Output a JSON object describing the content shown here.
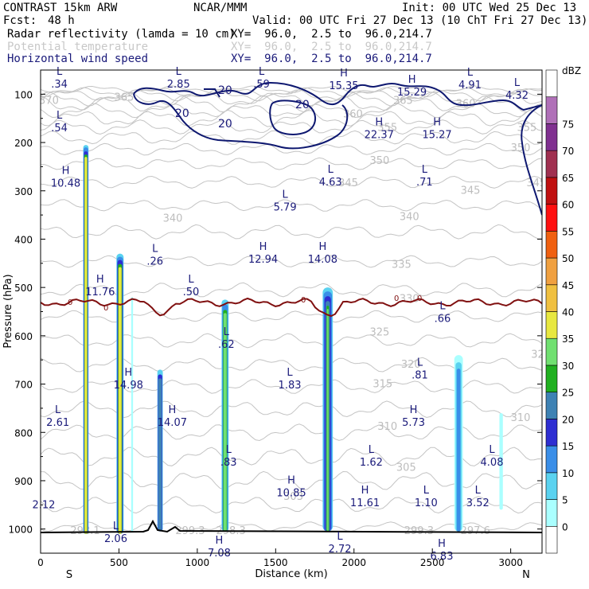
{
  "header": {
    "model": "CONTRAST 15km ARW",
    "center": "NCAR/MMM",
    "init": "Init: 00 UTC Wed 25 Dec 13",
    "fcst_label": "Fcst:",
    "fcst_value": "48 h",
    "valid": "Valid: 00 UTC Fri 27 Dec 13 (10 ChT Fri 27 Dec 13)",
    "fields": [
      {
        "name": "Radar reflectivity (lamda = 10 cm)",
        "xy": "XY=  96.0,  2.5 to  96.0,214.7",
        "color": "#000000"
      },
      {
        "name": "Potential temperature",
        "xy": "XY=  96.0,  2.5 to  96.0,214.7",
        "color": "#c8c8c8"
      },
      {
        "name": "Horizontal wind speed",
        "xy": "XY=  96.0,  2.5 to  96.0,214.7",
        "color": "#1a1a7a"
      }
    ]
  },
  "chart_data": {
    "type": "cross-section",
    "title": "CONTRAST 15km ARW cross-section",
    "xlabel": "Distance (km)",
    "ylabel": "Pressure (hPa)",
    "xlim": [
      0,
      3200
    ],
    "ylim": [
      1050,
      50
    ],
    "x_ticks": [
      0,
      500,
      1000,
      1500,
      2000,
      2500,
      3000
    ],
    "y_ticks": [
      100,
      200,
      300,
      400,
      500,
      600,
      700,
      800,
      900,
      1000
    ],
    "endpoints": {
      "left": "S",
      "right": "N"
    },
    "colorbar": {
      "unit": "dBZ",
      "levels": [
        0,
        5,
        10,
        15,
        20,
        25,
        30,
        35,
        40,
        45,
        50,
        55,
        60,
        65,
        70,
        75
      ],
      "colors": [
        "#ffffff",
        "#aaffff",
        "#5ad2f0",
        "#3a8ee8",
        "#2e2ed2",
        "#3e82b4",
        "#20b020",
        "#70e070",
        "#e8e840",
        "#f0c040",
        "#f0a040",
        "#f06010",
        "#ff1010",
        "#c01010",
        "#a03050",
        "#803090",
        "#b070b8",
        "#ffffff"
      ]
    },
    "wind_contours": [
      20
    ],
    "freezing_level_label": "0",
    "theta_labels": [
      {
        "x": -10,
        "p": 112,
        "v": "370"
      },
      {
        "x": 470,
        "p": 105,
        "v": "365"
      },
      {
        "x": 2250,
        "p": 112,
        "v": "365"
      },
      {
        "x": 2650,
        "p": 118,
        "v": "360"
      },
      {
        "x": 1930,
        "p": 140,
        "v": "360"
      },
      {
        "x": 2150,
        "p": 168,
        "v": "355"
      },
      {
        "x": 3040,
        "p": 168,
        "v": "355"
      },
      {
        "x": 3000,
        "p": 210,
        "v": "350"
      },
      {
        "x": 2100,
        "p": 236,
        "v": "350"
      },
      {
        "x": 1900,
        "p": 282,
        "v": "345"
      },
      {
        "x": 2680,
        "p": 298,
        "v": "345"
      },
      {
        "x": 3100,
        "p": 282,
        "v": "345"
      },
      {
        "x": 780,
        "p": 356,
        "v": "340"
      },
      {
        "x": 2290,
        "p": 352,
        "v": "340"
      },
      {
        "x": 2240,
        "p": 451,
        "v": "335"
      },
      {
        "x": 2290,
        "p": 522,
        "v": "330"
      },
      {
        "x": 2100,
        "p": 591,
        "v": "325"
      },
      {
        "x": 3130,
        "p": 637,
        "v": "320"
      },
      {
        "x": 2300,
        "p": 658,
        "v": "320"
      },
      {
        "x": 2120,
        "p": 698,
        "v": "315"
      },
      {
        "x": 3000,
        "p": 768,
        "v": "310"
      },
      {
        "x": 2150,
        "p": 786,
        "v": "310"
      },
      {
        "x": 2270,
        "p": 871,
        "v": "305"
      },
      {
        "x": 1550,
        "p": 931,
        "v": "303"
      },
      {
        "x": 2320,
        "p": 1002,
        "v": "299.3"
      },
      {
        "x": 190,
        "p": 1002,
        "v": "298.1"
      },
      {
        "x": 1120,
        "p": 1002,
        "v": "298.3"
      },
      {
        "x": 860,
        "p": 1002,
        "v": "299.3"
      },
      {
        "x": 2680,
        "p": 1002,
        "v": "297.6"
      }
    ],
    "extrema": [
      {
        "type": "L",
        "x": 120,
        "p": 80,
        "v": ".34"
      },
      {
        "type": "L",
        "x": 880,
        "p": 80,
        "v": "2.85"
      },
      {
        "type": "L",
        "x": 1410,
        "p": 80,
        "v": ".59"
      },
      {
        "type": "H",
        "x": 1935,
        "p": 83,
        "v": "15.35"
      },
      {
        "type": "H",
        "x": 2370,
        "p": 96,
        "v": "15.29"
      },
      {
        "type": "L",
        "x": 2740,
        "p": 81,
        "v": "4.91"
      },
      {
        "type": "L",
        "x": 3040,
        "p": 103,
        "v": "4.32"
      },
      {
        "type": "L",
        "x": 120,
        "p": 170,
        "v": ".54"
      },
      {
        "type": "H",
        "x": 2160,
        "p": 184,
        "v": "22.37"
      },
      {
        "type": "H",
        "x": 2530,
        "p": 184,
        "v": "15.27"
      },
      {
        "type": "H",
        "x": 160,
        "p": 285,
        "v": "10.48"
      },
      {
        "type": "L",
        "x": 1850,
        "p": 282,
        "v": "4.63"
      },
      {
        "type": "L",
        "x": 2450,
        "p": 282,
        "v": ".71"
      },
      {
        "type": "L",
        "x": 1560,
        "p": 334,
        "v": "5.79"
      },
      {
        "type": "L",
        "x": 730,
        "p": 446,
        "v": ".26"
      },
      {
        "type": "H",
        "x": 1420,
        "p": 442,
        "v": "12.94"
      },
      {
        "type": "H",
        "x": 1800,
        "p": 442,
        "v": "14.08"
      },
      {
        "type": "L",
        "x": 960,
        "p": 510,
        "v": ".50"
      },
      {
        "type": "H",
        "x": 380,
        "p": 510,
        "v": "11.76"
      },
      {
        "type": "L",
        "x": 2565,
        "p": 565,
        "v": ".66"
      },
      {
        "type": "L",
        "x": 1185,
        "p": 618,
        "v": ".62"
      },
      {
        "type": "L",
        "x": 2420,
        "p": 682,
        "v": ".81"
      },
      {
        "type": "H",
        "x": 560,
        "p": 702,
        "v": "14.98"
      },
      {
        "type": "L",
        "x": 1590,
        "p": 702,
        "v": "1.83"
      },
      {
        "type": "L",
        "x": 110,
        "p": 780,
        "v": "2.61"
      },
      {
        "type": "H",
        "x": 840,
        "p": 780,
        "v": "14.07"
      },
      {
        "type": "H",
        "x": 2380,
        "p": 780,
        "v": "5.73"
      },
      {
        "type": "L",
        "x": 1200,
        "p": 862,
        "v": ".83"
      },
      {
        "type": "L",
        "x": 2110,
        "p": 862,
        "v": "1.62"
      },
      {
        "type": "L",
        "x": 2880,
        "p": 862,
        "v": "4.08"
      },
      {
        "type": "H",
        "x": 1600,
        "p": 926,
        "v": "10.85"
      },
      {
        "type": "H",
        "x": 2070,
        "p": 946,
        "v": "11.61"
      },
      {
        "type": "L",
        "x": 2460,
        "p": 946,
        "v": "1.10"
      },
      {
        "type": "L",
        "x": 2790,
        "p": 946,
        "v": "3.52"
      },
      {
        "type": "",
        "x": 20,
        "p": 950,
        "v": "2.12"
      },
      {
        "type": "L",
        "x": 480,
        "p": 1020,
        "v": "2.06"
      },
      {
        "type": "H",
        "x": 1140,
        "p": 1050,
        "v": "7.08"
      },
      {
        "type": "L",
        "x": 1910,
        "p": 1042,
        "v": "2.72"
      },
      {
        "type": "H",
        "x": 2560,
        "p": 1057,
        "v": "6.83"
      }
    ]
  }
}
